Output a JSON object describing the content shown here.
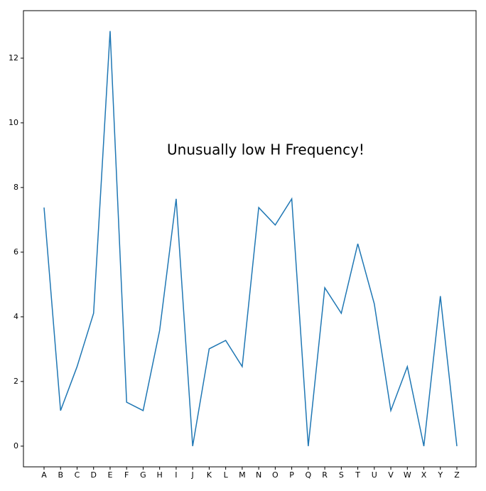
{
  "chart_data": {
    "type": "line",
    "annotation": "Unusually low H Frequency!",
    "categories": [
      "A",
      "B",
      "C",
      "D",
      "E",
      "F",
      "G",
      "H",
      "I",
      "J",
      "K",
      "L",
      "M",
      "N",
      "O",
      "P",
      "Q",
      "R",
      "S",
      "T",
      "U",
      "V",
      "W",
      "X",
      "Y",
      "Z"
    ],
    "series": [
      {
        "color": "#1f77b4",
        "values": [
          7.38,
          1.1,
          2.46,
          4.11,
          12.84,
          1.36,
          1.1,
          3.58,
          7.65,
          0,
          3.01,
          3.27,
          2.46,
          7.38,
          6.84,
          7.65,
          0,
          4.9,
          4.11,
          6.26,
          4.4,
          1.1,
          2.46,
          0,
          4.64,
          0
        ]
      }
    ],
    "ylim": [
      -0.64,
      13.47
    ],
    "yticks": [
      0,
      2,
      4,
      6,
      8,
      10,
      12
    ],
    "grid": false
  }
}
